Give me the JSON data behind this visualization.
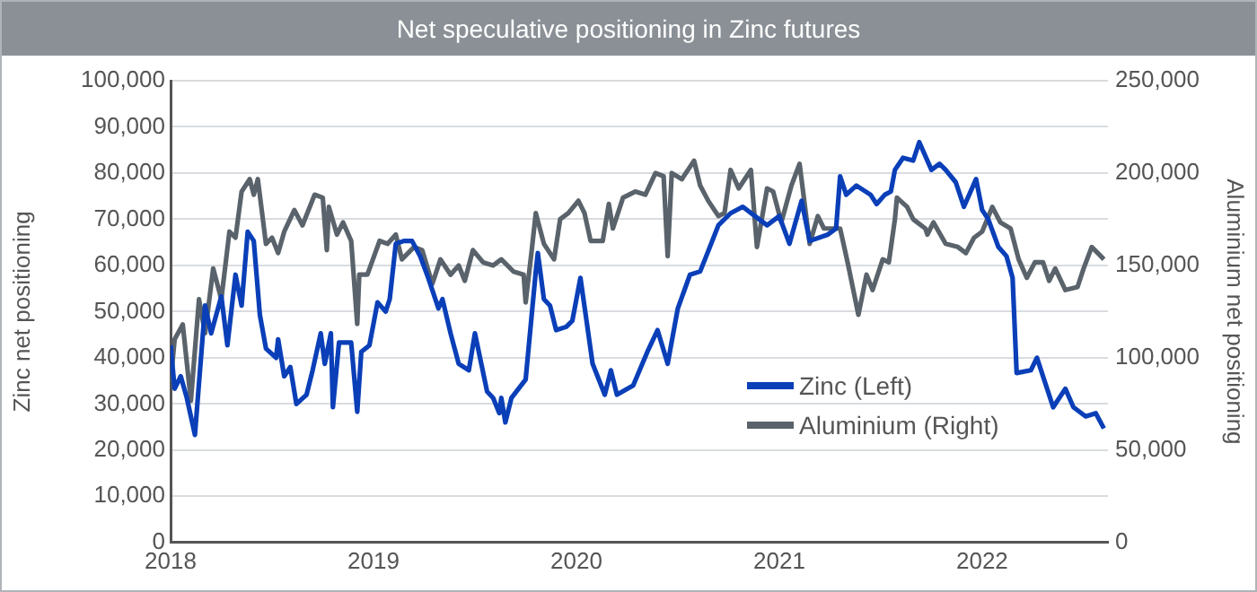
{
  "chart_data": {
    "type": "line",
    "title": "Net speculative positioning in Zinc futures",
    "ylabel": "Zinc net positioning",
    "y2label": "Aluminium net positioning",
    "xlim": [
      2018,
      2022.62
    ],
    "xticks": [
      2018,
      2019,
      2020,
      2021,
      2022
    ],
    "ylim": [
      0,
      100000
    ],
    "yticks": [
      0,
      {
        "value": 10000,
        "label": "10,000"
      },
      {
        "value": 20000,
        "label": "20,000"
      },
      {
        "value": 30000,
        "label": "30,000"
      },
      {
        "value": 40000,
        "label": "40,000"
      },
      {
        "value": 50000,
        "label": "50,000"
      },
      {
        "value": 60000,
        "label": "60,000"
      },
      {
        "value": 70000,
        "label": "70,000"
      },
      {
        "value": 80000,
        "label": "80,000"
      },
      {
        "value": 90000,
        "label": "90,000"
      },
      {
        "value": 100000,
        "label": "100,000"
      }
    ],
    "y2lim": [
      0,
      250000
    ],
    "y2ticks": [
      0,
      {
        "value": 50000,
        "label": "50,000"
      },
      {
        "value": 100000,
        "label": "100,000"
      },
      {
        "value": 150000,
        "label": "150,000"
      },
      {
        "value": 200000,
        "label": "200,000"
      },
      {
        "value": 250000,
        "label": "250,000"
      }
    ],
    "grid": "y",
    "legend": "bottom right",
    "marker": "none",
    "line_style": "solid",
    "series": [
      {
        "name": "Zinc (Left)",
        "color": "#0a3fb8",
        "x": [
          2018.0,
          2018.02,
          2018.05,
          2018.08,
          2018.12,
          2018.17,
          2018.2,
          2018.25,
          2018.28,
          2018.32,
          2018.35,
          2018.38,
          2018.41,
          2018.44,
          2018.47,
          2018.52,
          2018.53,
          2018.56,
          2018.59,
          2018.62,
          2018.67,
          2018.7,
          2018.74,
          2018.76,
          2018.79,
          2018.8,
          2018.83,
          2018.89,
          2018.92,
          2018.94,
          2018.98,
          2019.02,
          2019.06,
          2019.08,
          2019.11,
          2019.15,
          2019.19,
          2019.23,
          2019.27,
          2019.32,
          2019.34,
          2019.38,
          2019.42,
          2019.47,
          2019.5,
          2019.56,
          2019.59,
          2019.62,
          2019.63,
          2019.65,
          2019.68,
          2019.75,
          2019.8,
          2019.81,
          2019.84,
          2019.87,
          2019.9,
          2019.95,
          2019.98,
          2020.02,
          2020.05,
          2020.08,
          2020.14,
          2020.17,
          2020.2,
          2020.28,
          2020.35,
          2020.4,
          2020.45,
          2020.5,
          2020.56,
          2020.61,
          2020.64,
          2020.7,
          2020.76,
          2020.82,
          2020.88,
          2020.94,
          2021.0,
          2021.05,
          2021.11,
          2021.15,
          2021.24,
          2021.28,
          2021.3,
          2021.33,
          2021.38,
          2021.45,
          2021.48,
          2021.52,
          2021.55,
          2021.57,
          2021.61,
          2021.66,
          2021.69,
          2021.75,
          2021.79,
          2021.82,
          2021.87,
          2021.91,
          2021.97,
          2022.0,
          2022.03,
          2022.08,
          2022.12,
          2022.15,
          2022.17,
          2022.24,
          2022.27,
          2022.35,
          2022.41,
          2022.45,
          2022.51,
          2022.56,
          2022.6
        ],
        "values": [
          42700,
          33300,
          36000,
          31300,
          23300,
          51300,
          45300,
          53300,
          42700,
          58000,
          51300,
          67300,
          65300,
          49300,
          42000,
          40000,
          44000,
          36000,
          38000,
          30000,
          32000,
          37300,
          45300,
          38700,
          45300,
          29300,
          43300,
          43300,
          28300,
          41300,
          42700,
          52000,
          50000,
          52700,
          64700,
          65300,
          65300,
          62000,
          57300,
          50700,
          52700,
          45300,
          38700,
          37300,
          45300,
          32700,
          31300,
          28000,
          31300,
          26000,
          31300,
          35300,
          58700,
          62700,
          52700,
          51300,
          46000,
          46700,
          48000,
          57300,
          48000,
          38700,
          32000,
          37300,
          32000,
          34000,
          41300,
          46000,
          38700,
          50700,
          58000,
          58700,
          62000,
          68700,
          71300,
          72700,
          70700,
          68700,
          70700,
          64700,
          74000,
          65300,
          66700,
          68000,
          79300,
          75300,
          77300,
          75300,
          73300,
          75300,
          76000,
          80700,
          83300,
          82700,
          86700,
          80700,
          82000,
          80700,
          78000,
          72700,
          78700,
          72000,
          70000,
          64000,
          62000,
          57300,
          36700,
          37300,
          40000,
          29300,
          33300,
          29300,
          27300,
          28000,
          24700
        ]
      },
      {
        "name": "Aluminium (Right)",
        "color": "#5a636b",
        "axis": "y2",
        "x": [
          2018.0,
          2018.02,
          2018.06,
          2018.1,
          2018.14,
          2018.17,
          2018.21,
          2018.25,
          2018.29,
          2018.32,
          2018.35,
          2018.39,
          2018.41,
          2018.43,
          2018.47,
          2018.5,
          2018.53,
          2018.56,
          2018.61,
          2018.65,
          2018.71,
          2018.75,
          2018.77,
          2018.78,
          2018.82,
          2018.85,
          2018.89,
          2018.92,
          2018.93,
          2018.97,
          2019.03,
          2019.07,
          2019.11,
          2019.14,
          2019.2,
          2019.24,
          2019.29,
          2019.33,
          2019.38,
          2019.42,
          2019.45,
          2019.49,
          2019.54,
          2019.59,
          2019.63,
          2019.66,
          2019.69,
          2019.74,
          2019.75,
          2019.78,
          2019.8,
          2019.84,
          2019.89,
          2019.92,
          2019.96,
          2020.01,
          2020.04,
          2020.07,
          2020.13,
          2020.16,
          2020.18,
          2020.23,
          2020.29,
          2020.34,
          2020.39,
          2020.43,
          2020.45,
          2020.47,
          2020.52,
          2020.58,
          2020.61,
          2020.65,
          2020.7,
          2020.73,
          2020.76,
          2020.8,
          2020.86,
          2020.89,
          2020.94,
          2020.97,
          2021.01,
          2021.06,
          2021.1,
          2021.15,
          2021.19,
          2021.22,
          2021.3,
          2021.34,
          2021.39,
          2021.43,
          2021.46,
          2021.51,
          2021.54,
          2021.57,
          2021.58,
          2021.63,
          2021.66,
          2021.72,
          2021.73,
          2021.76,
          2021.82,
          2021.88,
          2021.92,
          2021.96,
          2022.0,
          2022.05,
          2022.09,
          2022.14,
          2022.18,
          2022.22,
          2022.26,
          2022.3,
          2022.33,
          2022.36,
          2022.41,
          2022.47,
          2022.5,
          2022.54,
          2022.57,
          2022.6
        ],
        "values": [
          86700,
          110000,
          118000,
          76700,
          131700,
          113300,
          148300,
          131700,
          168300,
          165000,
          190000,
          196700,
          188300,
          196700,
          161700,
          165000,
          156700,
          168300,
          180000,
          171700,
          188300,
          186700,
          158300,
          181700,
          166700,
          173300,
          163300,
          118300,
          145000,
          145000,
          163300,
          161700,
          166700,
          153300,
          160000,
          158300,
          140000,
          153300,
          145000,
          150000,
          141700,
          158300,
          151700,
          150000,
          153300,
          150000,
          146700,
          145000,
          130000,
          158300,
          178300,
          161700,
          153300,
          175000,
          178300,
          185000,
          178300,
          163300,
          163300,
          183300,
          170000,
          186700,
          190000,
          188300,
          200000,
          198300,
          155000,
          200000,
          196700,
          206700,
          193300,
          185000,
          176700,
          178300,
          201700,
          191700,
          201700,
          160000,
          191700,
          190000,
          173300,
          193300,
          205000,
          161700,
          176700,
          170000,
          170000,
          150000,
          123300,
          145000,
          136700,
          153300,
          151700,
          175000,
          186700,
          181700,
          175000,
          170000,
          166700,
          173300,
          161700,
          160000,
          156700,
          165000,
          168300,
          181700,
          173300,
          170000,
          153300,
          143300,
          151700,
          151700,
          141700,
          148300,
          136700,
          138300,
          148300,
          160000,
          156700,
          153300
        ]
      }
    ]
  }
}
